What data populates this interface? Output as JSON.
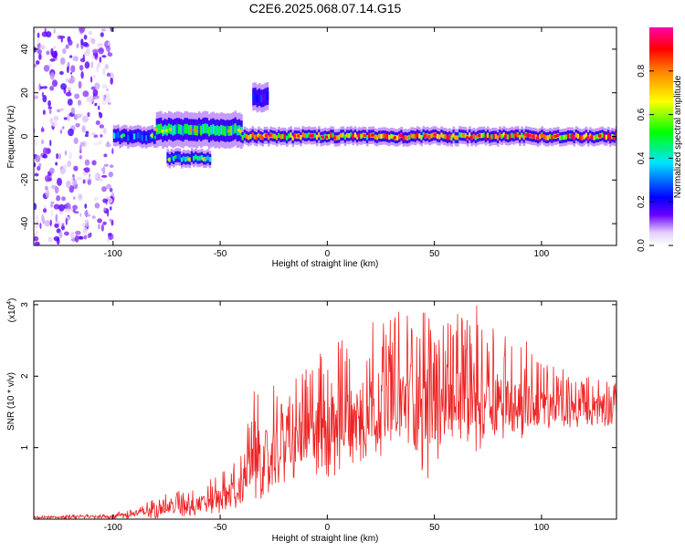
{
  "title": "C2E6.2025.068.07.14.G15",
  "chart_data": [
    {
      "type": "heatmap",
      "xlabel": "Height of straight line (km)",
      "ylabel": "Frequency (Hz)",
      "xlim": [
        -137,
        135
      ],
      "ylim": [
        -50,
        50
      ],
      "xticks": [
        -100,
        -50,
        0,
        50,
        100
      ],
      "yticks": [
        -40,
        -20,
        0,
        20,
        40
      ],
      "colorbar": {
        "label": "Normalized spectral amplitude",
        "range": [
          0,
          1
        ],
        "ticks": [
          0.0,
          0.2,
          0.4,
          0.6,
          0.8
        ],
        "tick_labels": [
          "0.0",
          "0.2",
          "0.4",
          "0.6",
          "0.8"
        ]
      },
      "regions": [
        {
          "x_from": -137,
          "x_to": -100,
          "freq_from": -50,
          "freq_to": 50,
          "amplitude": 0.1
        },
        {
          "x_from": -100,
          "x_to": -80,
          "freq_center": 0,
          "freq_halfwidth": 3,
          "amplitude": 0.35
        },
        {
          "x_from": -80,
          "x_to": -40,
          "freq_center": 3,
          "freq_halfwidth": 5,
          "amplitude": 0.5
        },
        {
          "x_from": -75,
          "x_to": -55,
          "freq_center": -10,
          "freq_halfwidth": 2.5,
          "amplitude": 0.45
        },
        {
          "x_from": -35,
          "x_to": -28,
          "freq_center": 18,
          "freq_halfwidth": 4,
          "amplitude": 0.25
        },
        {
          "x_from": -40,
          "x_to": 135,
          "freq_center": 0,
          "freq_halfwidth": 2.5,
          "amplitude": 0.8
        }
      ]
    },
    {
      "type": "line",
      "xlabel": "Height of straight line (km)",
      "ylabel": "SNR (10 * v/v)",
      "scale_label": "(x10",
      "scale_exponent": "4",
      "scale_close": ")",
      "xlim": [
        -137,
        135
      ],
      "ylim": [
        0,
        3.05
      ],
      "xticks": [
        -100,
        -50,
        0,
        50,
        100
      ],
      "yticks": [
        1,
        2,
        3
      ],
      "color": "#ee2222",
      "x": [
        -137,
        -120,
        -100,
        -90,
        -80,
        -70,
        -60,
        -50,
        -40,
        -35,
        -33,
        -30,
        -25,
        -20,
        -10,
        0,
        10,
        20,
        30,
        40,
        50,
        60,
        70,
        80,
        90,
        100,
        110,
        120,
        130,
        135
      ],
      "y": [
        0.02,
        0.03,
        0.04,
        0.08,
        0.14,
        0.18,
        0.22,
        0.3,
        0.45,
        0.8,
        1.1,
        0.6,
        0.9,
        1.0,
        1.2,
        1.3,
        1.45,
        1.55,
        1.65,
        1.75,
        1.65,
        1.7,
        1.75,
        1.7,
        1.6,
        1.55,
        1.55,
        1.55,
        1.6,
        1.6
      ],
      "peak_max": [
        0.04,
        0.06,
        0.08,
        0.16,
        0.3,
        0.4,
        0.48,
        0.65,
        0.9,
        1.9,
        2.0,
        1.1,
        1.9,
        1.7,
        2.2,
        2.4,
        2.6,
        2.8,
        2.9,
        3.0,
        2.9,
        2.9,
        3.0,
        2.7,
        2.6,
        2.3,
        2.1,
        2.0,
        2.0,
        1.9
      ],
      "trough_min": [
        0.0,
        0.0,
        0.0,
        0.0,
        0.01,
        0.03,
        0.05,
        0.08,
        0.12,
        0.2,
        0.3,
        0.15,
        0.35,
        0.5,
        0.6,
        0.55,
        0.7,
        0.8,
        0.85,
        0.9,
        0.35,
        1.0,
        0.9,
        1.1,
        1.1,
        1.2,
        1.2,
        1.3,
        1.3,
        1.3
      ]
    }
  ]
}
